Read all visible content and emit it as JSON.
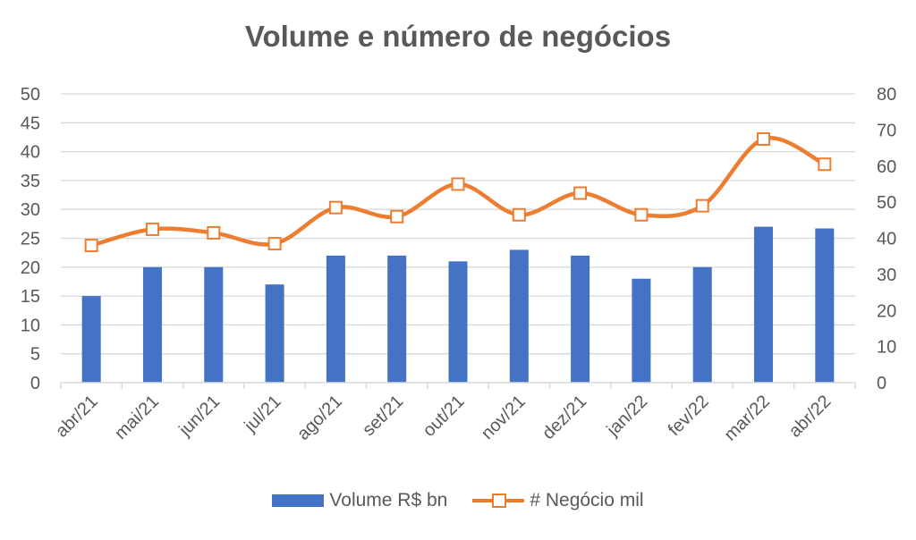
{
  "chart_data": {
    "type": "bar",
    "title": "Volume e número de negócios",
    "categories": [
      "abr/21",
      "mai/21",
      "jun/21",
      "jul/21",
      "ago/21",
      "set/21",
      "out/21",
      "nov/21",
      "dez/21",
      "jan/22",
      "fev/22",
      "mar/22",
      "abr/22"
    ],
    "series": [
      {
        "name": "Volume R$ bn",
        "type": "bar",
        "axis": "left",
        "values": [
          15,
          20,
          20,
          17,
          22,
          22,
          21,
          23,
          22,
          18,
          20,
          27,
          26.7
        ]
      },
      {
        "name": "# Negócio mil",
        "type": "line",
        "axis": "right",
        "smooth": true,
        "marker": "square",
        "values": [
          38,
          42.5,
          41.5,
          38.5,
          48.5,
          46,
          55,
          46.5,
          52.5,
          46.5,
          49,
          67.5,
          60.5
        ]
      }
    ],
    "ylim_left": [
      0,
      50
    ],
    "yticks_left": [
      "0",
      "5",
      "10",
      "15",
      "20",
      "25",
      "30",
      "35",
      "40",
      "45",
      "50"
    ],
    "ylim_right": [
      0,
      80
    ],
    "yticks_right": [
      "0",
      "10",
      "20",
      "30",
      "40",
      "50",
      "60",
      "70",
      "80"
    ],
    "grid": true,
    "legend_position": "bottom",
    "colors": {
      "bar": "#4472C4",
      "line": "#ED7D31",
      "grid": "#D9D9D9",
      "text": "#595959"
    }
  }
}
